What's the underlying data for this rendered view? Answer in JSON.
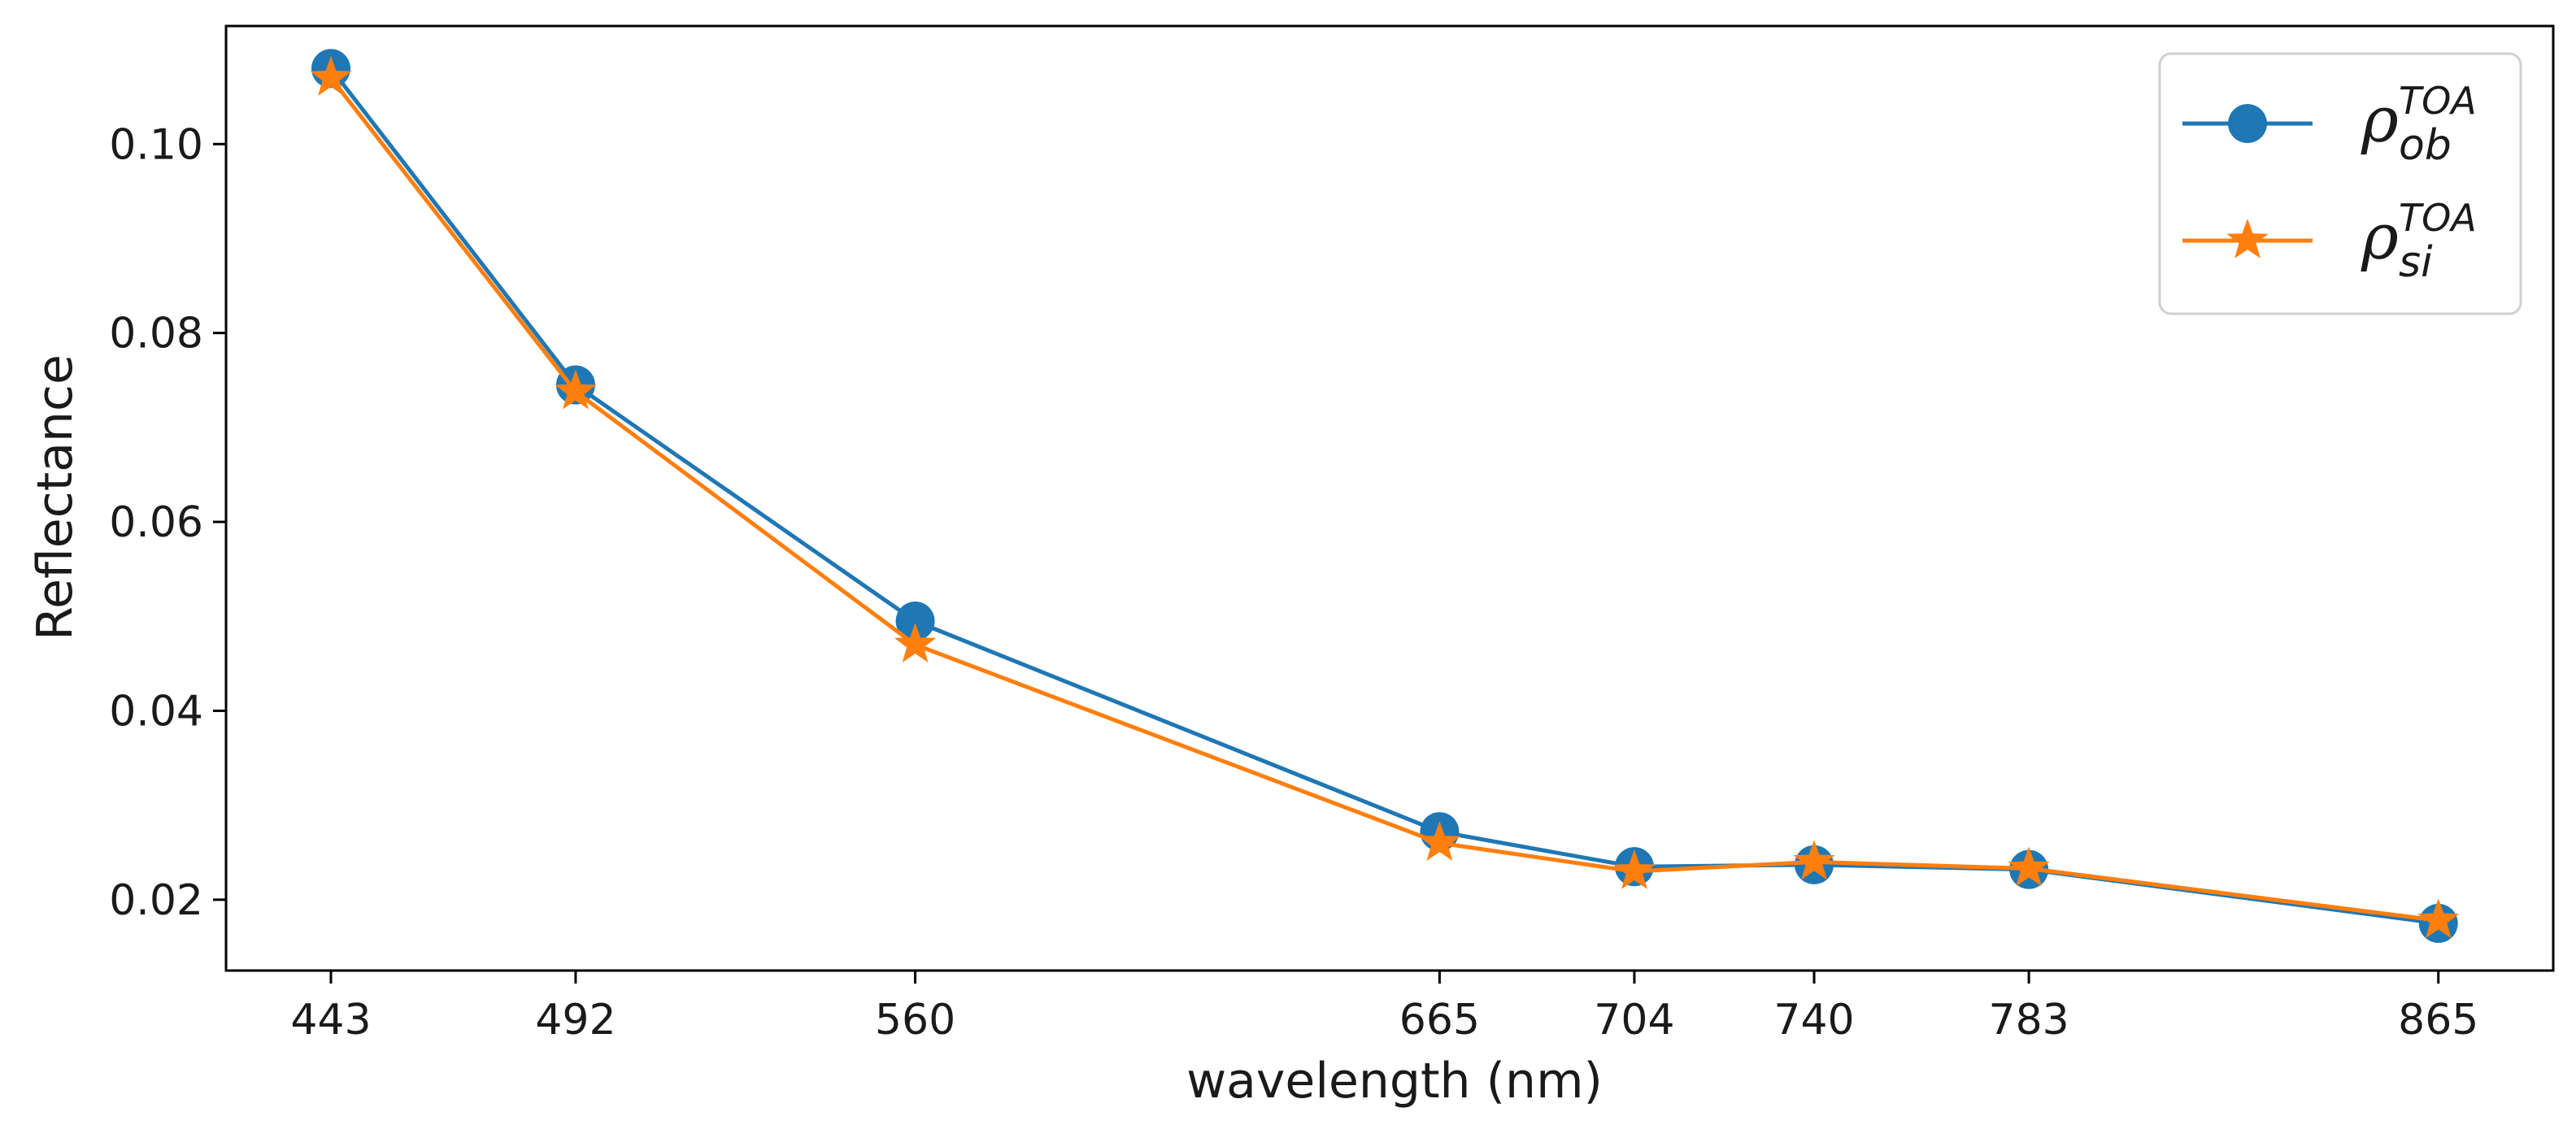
{
  "chart_data": {
    "type": "line",
    "title": "",
    "xlabel": "wavelength (nm)",
    "ylabel": "Reflectance",
    "categories": [
      "443",
      "492",
      "560",
      "665",
      "704",
      "740",
      "783",
      "865"
    ],
    "x": [
      443,
      492,
      560,
      665,
      704,
      740,
      783,
      865
    ],
    "xlim": [
      422,
      888
    ],
    "ylim": [
      0.0125,
      0.1125
    ],
    "yticks": [
      "0.02",
      "0.04",
      "0.06",
      "0.08",
      "0.10"
    ],
    "ytick_values": [
      0.02,
      0.04,
      0.06,
      0.08,
      0.1
    ],
    "grid": false,
    "legend_position": "top-right",
    "series": [
      {
        "name": "ρ_ob^TOA",
        "symbol": "ρ",
        "subscript": "ob",
        "superscript": "TOA",
        "marker": "circle",
        "color": "#1f77b4",
        "values": [
          0.108,
          0.0745,
          0.0495,
          0.0272,
          0.0235,
          0.0237,
          0.0232,
          0.0175
        ]
      },
      {
        "name": "ρ_si^TOA",
        "symbol": "ρ",
        "subscript": "si",
        "superscript": "TOA",
        "marker": "star",
        "color": "#ff7f0e",
        "values": [
          0.107,
          0.0738,
          0.047,
          0.026,
          0.023,
          0.024,
          0.0233,
          0.0178
        ]
      }
    ]
  }
}
